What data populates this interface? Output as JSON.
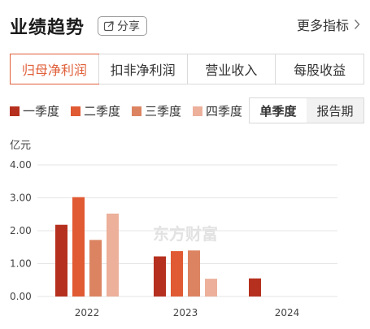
{
  "header": {
    "title": "业绩趋势",
    "share_label": "分享",
    "more_label": "更多指标"
  },
  "tabs": [
    {
      "label": "归母净利润",
      "active": true
    },
    {
      "label": "扣非净利润",
      "active": false
    },
    {
      "label": "营业收入",
      "active": false
    },
    {
      "label": "每股收益",
      "active": false
    }
  ],
  "period_toggle": [
    {
      "label": "单季度",
      "active": true
    },
    {
      "label": "报告期",
      "active": false
    }
  ],
  "watermark": "东方财富",
  "colors": {
    "accent": "#e0603a",
    "q1": "#b5301e",
    "q2": "#e05a33",
    "q3": "#dc8462",
    "q4": "#ecb09b"
  },
  "chart_data": {
    "type": "bar",
    "unit": "亿元",
    "categories": [
      "2022",
      "2023",
      "2024"
    ],
    "series": [
      {
        "name": "一季度",
        "color": "#b5301e",
        "values": [
          2.18,
          1.22,
          0.55
        ]
      },
      {
        "name": "二季度",
        "color": "#e05a33",
        "values": [
          3.02,
          1.38,
          null
        ]
      },
      {
        "name": "三季度",
        "color": "#dc8462",
        "values": [
          1.72,
          1.4,
          null
        ]
      },
      {
        "name": "四季度",
        "color": "#ecb09b",
        "values": [
          2.52,
          0.54,
          null
        ]
      }
    ],
    "yticks": [
      "4.00",
      "3.00",
      "2.00",
      "1.00",
      "0.00"
    ],
    "ylim": [
      0,
      4
    ],
    "grid": true,
    "legend_position": "top-left"
  }
}
